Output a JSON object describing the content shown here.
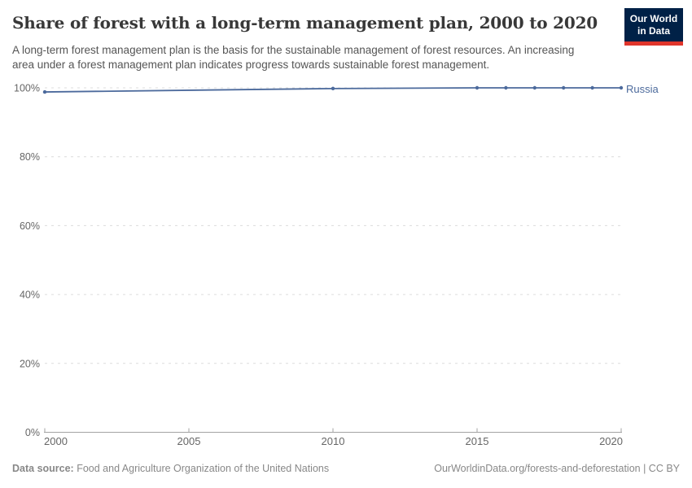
{
  "header": {
    "title": "Share of forest with a long-term management plan, 2000 to 2020",
    "subtitle": "A long-term forest management plan is the basis for the sustainable management of forest resources. An increasing area under a forest management plan indicates progress towards sustainable forest management.",
    "logo": {
      "line1": "Our World",
      "line2": "in Data",
      "bg_color": "#002147",
      "accent_color": "#e0352b"
    }
  },
  "chart_data": {
    "type": "line",
    "title": "Share of forest with a long-term management plan, 2000 to 2020",
    "xlabel": "",
    "ylabel": "",
    "xlim": [
      2000,
      2020
    ],
    "ylim": [
      0,
      100
    ],
    "x_ticks": [
      2000,
      2005,
      2010,
      2015,
      2020
    ],
    "y_ticks": [
      0,
      20,
      40,
      60,
      80,
      100
    ],
    "y_tick_suffix": "%",
    "grid": "horizontal-dashed",
    "legend_position": "end-of-line",
    "series": [
      {
        "name": "Russia",
        "color": "#4c6a9c",
        "points": [
          [
            2000,
            98.8
          ],
          [
            2010,
            99.8
          ],
          [
            2015,
            100
          ],
          [
            2016,
            100
          ],
          [
            2017,
            100
          ],
          [
            2018,
            100
          ],
          [
            2019,
            100
          ],
          [
            2020,
            100
          ]
        ]
      }
    ]
  },
  "footer": {
    "source_label": "Data source:",
    "source_value": " Food and Agriculture Organization of the United Nations",
    "credit": "OurWorldinData.org/forests-and-deforestation | CC BY"
  }
}
